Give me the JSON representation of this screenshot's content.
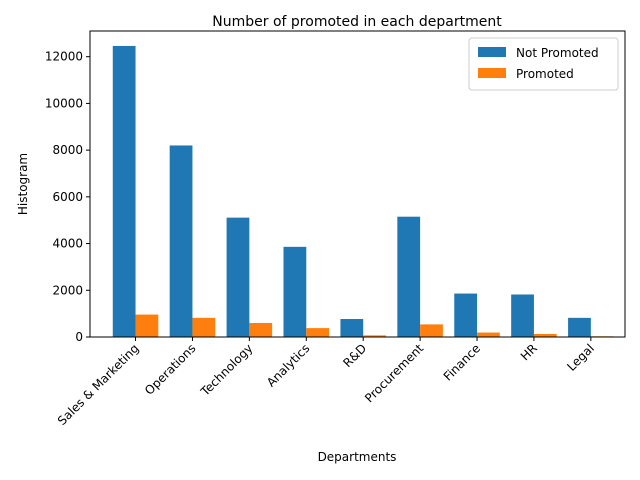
{
  "chart_data": {
    "type": "bar",
    "title": "Number of promoted in each department",
    "xlabel": "Departments",
    "ylabel": "Histogram",
    "categories": [
      "Sales & Marketing",
      "Operations",
      "Technology",
      "Analytics",
      "R&D",
      "Procurement",
      "Finance",
      "HR",
      "Legal"
    ],
    "series": [
      {
        "name": "Not Promoted",
        "color": "#1f77b4",
        "values": [
          12460,
          8200,
          5110,
          3860,
          770,
          5150,
          1860,
          1820,
          820
        ]
      },
      {
        "name": "Promoted",
        "color": "#ff7f0e",
        "values": [
          960,
          820,
          600,
          380,
          70,
          540,
          190,
          130,
          30
        ]
      }
    ],
    "ylim": [
      0,
      13100
    ],
    "yticks": [
      0,
      2000,
      4000,
      6000,
      8000,
      10000,
      12000
    ],
    "grid": false,
    "legend_position": "top-right"
  }
}
